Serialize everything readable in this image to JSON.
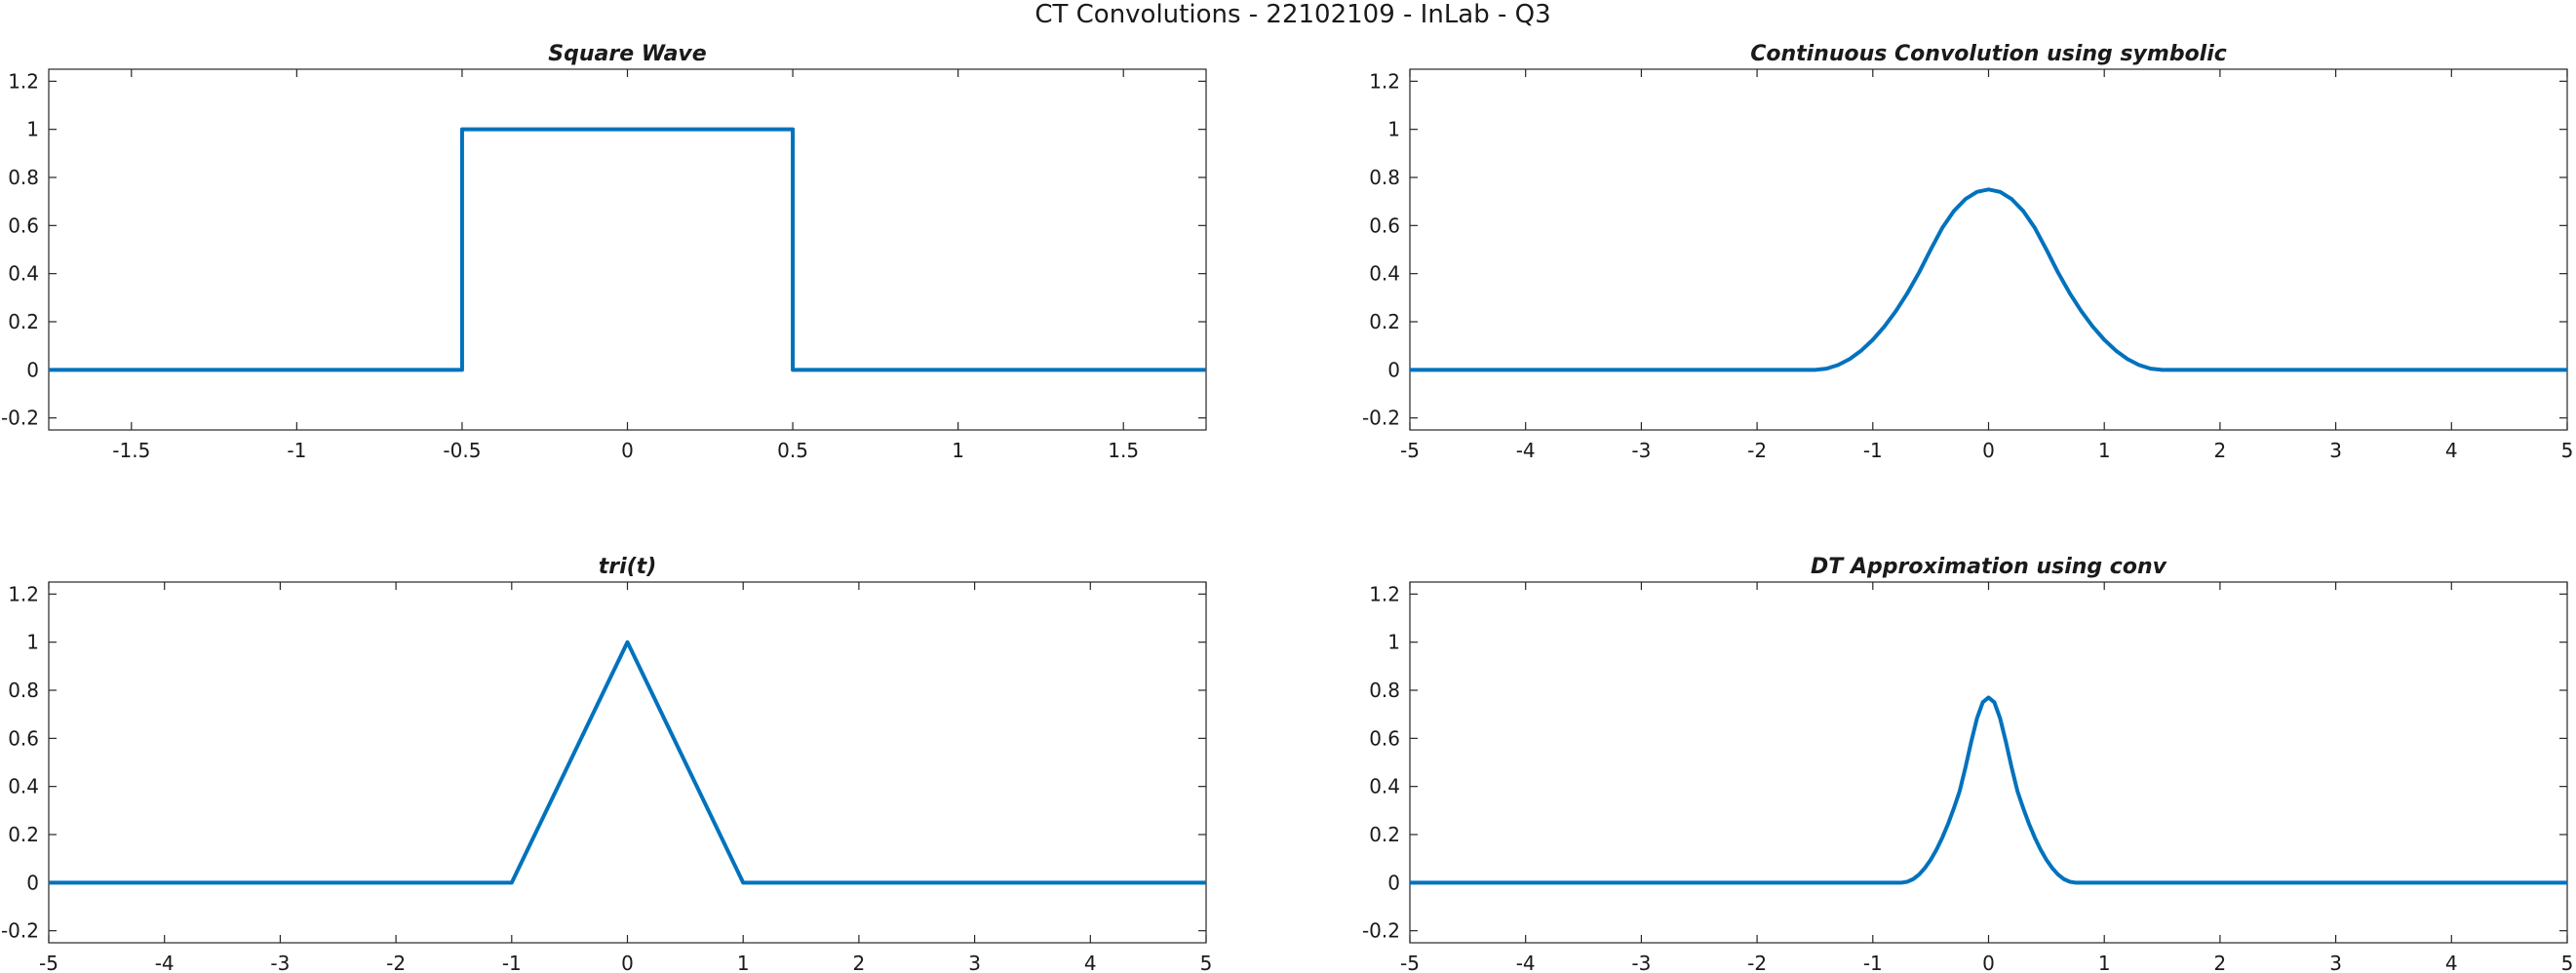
{
  "figure": {
    "title": "CT Convolutions - 22102109 - InLab - Q3"
  },
  "colors": {
    "line": "#0072BD"
  },
  "chart_data": [
    {
      "type": "line",
      "title": "Square Wave",
      "xlabel": "",
      "ylabel": "",
      "xlim": [
        -1.75,
        1.75
      ],
      "ylim": [
        -0.25,
        1.25
      ],
      "xticks": [
        -1.5,
        -1,
        -0.5,
        0,
        0.5,
        1,
        1.5
      ],
      "xtick_labels": [
        "-1.5",
        "-1",
        "-0.5",
        "0",
        "0.5",
        "1",
        "1.5"
      ],
      "yticks": [
        -0.2,
        0,
        0.2,
        0.4,
        0.6,
        0.8,
        1,
        1.2
      ],
      "ytick_labels": [
        "-0.2",
        "0",
        "0.2",
        "0.4",
        "0.6",
        "0.8",
        "1",
        "1.2"
      ],
      "grid": false,
      "series": [
        {
          "x": [
            -1.75,
            -0.5,
            -0.5,
            0.5,
            0.5,
            1.75
          ],
          "y": [
            0,
            0,
            1,
            1,
            0,
            0
          ]
        }
      ]
    },
    {
      "type": "line",
      "title": "Continuous Convolution using symbolic",
      "xlabel": "",
      "ylabel": "",
      "xlim": [
        -5,
        5
      ],
      "ylim": [
        -0.25,
        1.25
      ],
      "xticks": [
        -5,
        -4,
        -3,
        -2,
        -1,
        0,
        1,
        2,
        3,
        4,
        5
      ],
      "xtick_labels": [
        "-5",
        "-4",
        "-3",
        "-2",
        "-1",
        "0",
        "1",
        "2",
        "3",
        "4",
        "5"
      ],
      "yticks": [
        -0.2,
        0,
        0.2,
        0.4,
        0.6,
        0.8,
        1,
        1.2
      ],
      "ytick_labels": [
        "-0.2",
        "0",
        "0.2",
        "0.4",
        "0.6",
        "0.8",
        "1",
        "1.2"
      ],
      "grid": false,
      "series": [
        {
          "x": [
            -5,
            -1.5,
            -1.4,
            -1.3,
            -1.2,
            -1.1,
            -1.0,
            -0.9,
            -0.8,
            -0.7,
            -0.6,
            -0.5,
            -0.4,
            -0.3,
            -0.2,
            -0.1,
            0,
            0.1,
            0.2,
            0.3,
            0.4,
            0.5,
            0.6,
            0.7,
            0.8,
            0.9,
            1.0,
            1.1,
            1.2,
            1.3,
            1.4,
            1.5,
            5
          ],
          "y": [
            0,
            0,
            0.005,
            0.02,
            0.045,
            0.08,
            0.125,
            0.18,
            0.245,
            0.32,
            0.405,
            0.5,
            0.59,
            0.66,
            0.71,
            0.74,
            0.75,
            0.74,
            0.71,
            0.66,
            0.59,
            0.5,
            0.405,
            0.32,
            0.245,
            0.18,
            0.125,
            0.08,
            0.045,
            0.02,
            0.005,
            0,
            0
          ]
        }
      ]
    },
    {
      "type": "line",
      "title": "tri(t)",
      "xlabel": "",
      "ylabel": "",
      "xlim": [
        -5,
        5
      ],
      "ylim": [
        -0.25,
        1.25
      ],
      "xticks": [
        -5,
        -4,
        -3,
        -2,
        -1,
        0,
        1,
        2,
        3,
        4,
        5
      ],
      "xtick_labels": [
        "-5",
        "-4",
        "-3",
        "-2",
        "-1",
        "0",
        "1",
        "2",
        "3",
        "4",
        "5"
      ],
      "yticks": [
        -0.2,
        0,
        0.2,
        0.4,
        0.6,
        0.8,
        1,
        1.2
      ],
      "ytick_labels": [
        "-0.2",
        "0",
        "0.2",
        "0.4",
        "0.6",
        "0.8",
        "1",
        "1.2"
      ],
      "grid": false,
      "series": [
        {
          "x": [
            -5,
            -1,
            0,
            1,
            5
          ],
          "y": [
            0,
            0,
            1,
            0,
            0
          ]
        }
      ]
    },
    {
      "type": "line",
      "title": "DT Approximation using conv",
      "xlabel": "",
      "ylabel": "",
      "xlim": [
        -5,
        5
      ],
      "ylim": [
        -0.25,
        1.25
      ],
      "xticks": [
        -5,
        -4,
        -3,
        -2,
        -1,
        0,
        1,
        2,
        3,
        4,
        5
      ],
      "xtick_labels": [
        "-5",
        "-4",
        "-3",
        "-2",
        "-1",
        "0",
        "1",
        "2",
        "3",
        "4",
        "5"
      ],
      "yticks": [
        -0.2,
        0,
        0.2,
        0.4,
        0.6,
        0.8,
        1,
        1.2
      ],
      "ytick_labels": [
        "-0.2",
        "0",
        "0.2",
        "0.4",
        "0.6",
        "0.8",
        "1",
        "1.2"
      ],
      "grid": false,
      "series": [
        {
          "x": [
            -5,
            -0.75,
            -0.7,
            -0.65,
            -0.6,
            -0.55,
            -0.5,
            -0.45,
            -0.4,
            -0.35,
            -0.3,
            -0.25,
            -0.2,
            -0.15,
            -0.1,
            -0.05,
            0,
            0.05,
            0.1,
            0.15,
            0.2,
            0.25,
            0.3,
            0.35,
            0.4,
            0.45,
            0.5,
            0.55,
            0.6,
            0.65,
            0.7,
            0.75,
            5
          ],
          "y": [
            0,
            0,
            0.004,
            0.015,
            0.034,
            0.061,
            0.095,
            0.137,
            0.187,
            0.244,
            0.309,
            0.38,
            0.478,
            0.585,
            0.683,
            0.75,
            0.77,
            0.75,
            0.683,
            0.585,
            0.478,
            0.38,
            0.309,
            0.244,
            0.187,
            0.137,
            0.095,
            0.061,
            0.034,
            0.015,
            0.004,
            0,
            0
          ]
        }
      ]
    }
  ]
}
